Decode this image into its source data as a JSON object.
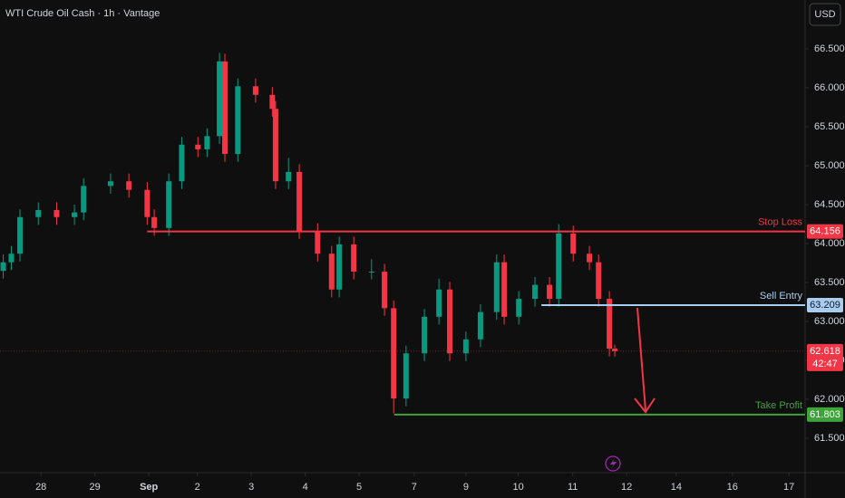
{
  "chart_data": {
    "type": "candlestick",
    "title": "WTI Crude Oil Cash · 1h · Vantage",
    "currency": "USD",
    "up_color": "#089981",
    "down_color": "#f23645",
    "x": [
      -0.7,
      -0.55,
      -0.39,
      -0.05,
      0.29,
      0.62,
      0.79,
      1.29,
      1.63,
      1.97,
      2.1,
      2.37,
      2.61,
      2.91,
      3.08,
      3.31,
      3.41,
      3.65,
      3.98,
      4.29,
      4.35,
      4.59,
      4.79,
      5.13,
      5.39,
      5.53,
      5.8,
      6.13,
      6.37,
      6.54,
      6.77,
      7.11,
      7.38,
      7.58,
      7.88,
      8.15,
      8.45,
      8.59,
      8.86,
      9.16,
      9.43,
      9.6,
      9.87,
      10.17,
      10.34,
      10.54,
      10.64
    ],
    "open": [
      63.65,
      63.76,
      63.87,
      64.34,
      64.43,
      64.34,
      64.4,
      64.74,
      64.8,
      64.69,
      64.34,
      64.2,
      64.8,
      65.27,
      65.21,
      65.38,
      66.34,
      65.15,
      66.02,
      65.91,
      65.73,
      64.8,
      64.92,
      64.16,
      63.87,
      63.41,
      63.99,
      63.64,
      63.64,
      63.17,
      62.01,
      62.59,
      63.06,
      63.41,
      62.59,
      62.77,
      63.12,
      63.76,
      63.06,
      63.29,
      63.47,
      63.29,
      64.13,
      63.87,
      63.76,
      63.29,
      62.65
    ],
    "high": [
      63.86,
      63.97,
      64.44,
      64.53,
      64.53,
      64.5,
      64.84,
      64.9,
      64.9,
      64.79,
      64.44,
      64.9,
      65.37,
      65.37,
      65.48,
      66.45,
      66.44,
      66.12,
      66.12,
      66.01,
      65.83,
      65.1,
      65.02,
      64.26,
      63.97,
      64.09,
      64.09,
      63.8,
      63.74,
      63.27,
      62.69,
      63.16,
      63.55,
      63.51,
      62.87,
      63.22,
      63.86,
      63.86,
      63.39,
      63.57,
      63.57,
      64.25,
      64.23,
      63.97,
      63.86,
      63.39,
      62.7
    ],
    "low": [
      63.55,
      63.66,
      63.77,
      64.24,
      64.24,
      64.24,
      64.3,
      64.64,
      64.59,
      64.24,
      64.1,
      64.1,
      64.7,
      65.11,
      65.11,
      65.28,
      65.05,
      65.05,
      65.81,
      65.63,
      64.7,
      64.7,
      64.06,
      63.77,
      63.31,
      63.31,
      63.54,
      63.54,
      63.07,
      61.82,
      61.91,
      62.49,
      62.96,
      62.49,
      62.49,
      62.67,
      63.02,
      62.96,
      62.96,
      63.19,
      63.19,
      63.19,
      63.77,
      63.66,
      63.19,
      62.55,
      62.55
    ],
    "close": [
      63.76,
      63.87,
      64.34,
      64.43,
      64.34,
      64.4,
      64.74,
      64.8,
      64.69,
      64.34,
      64.2,
      64.8,
      65.27,
      65.21,
      65.38,
      66.34,
      65.15,
      66.02,
      65.91,
      65.73,
      64.8,
      64.92,
      64.16,
      63.87,
      63.41,
      63.99,
      63.64,
      63.64,
      63.17,
      62.01,
      62.59,
      63.06,
      63.41,
      62.59,
      62.77,
      63.12,
      63.76,
      63.06,
      63.29,
      63.47,
      63.29,
      64.13,
      63.87,
      63.76,
      63.29,
      62.65,
      62.618
    ],
    "xlim": [
      -0.76,
      14.17
    ],
    "xticks": [
      {
        "value": 0,
        "label": "28"
      },
      {
        "value": 1,
        "label": "29"
      },
      {
        "value": 2,
        "label": "Sep"
      },
      {
        "value": 2.9,
        "label": "2"
      },
      {
        "value": 3.9,
        "label": "3"
      },
      {
        "value": 4.9,
        "label": "4"
      },
      {
        "value": 5.9,
        "label": "5"
      },
      {
        "value": 6.92,
        "label": "7"
      },
      {
        "value": 7.88,
        "label": "9"
      },
      {
        "value": 8.85,
        "label": "10"
      },
      {
        "value": 9.86,
        "label": "11"
      },
      {
        "value": 10.86,
        "label": "12"
      },
      {
        "value": 11.78,
        "label": "14"
      },
      {
        "value": 12.82,
        "label": "16"
      },
      {
        "value": 13.87,
        "label": "17"
      }
    ],
    "ylim": [
      61.058,
      67.128
    ],
    "yticks": [
      {
        "value": 61.5,
        "label": "61.500"
      },
      {
        "value": 62,
        "label": "62.000"
      },
      {
        "value": 62.5,
        "label": "62.500"
      },
      {
        "value": 63,
        "label": "63.000"
      },
      {
        "value": 63.5,
        "label": "63.500"
      },
      {
        "value": 64,
        "label": "64.000"
      },
      {
        "value": 64.5,
        "label": "64.500"
      },
      {
        "value": 65,
        "label": "65.000"
      },
      {
        "value": 65.5,
        "label": "65.500"
      },
      {
        "value": 66,
        "label": "66.000"
      },
      {
        "value": 66.5,
        "label": "66.500"
      }
    ],
    "grid": false,
    "levels": [
      {
        "name": "Stop Loss",
        "value": 64.156,
        "start": 1.97,
        "color": "#f23645"
      },
      {
        "name": "Sell Entry",
        "value": 63.209,
        "start": 9.28,
        "color": "#a9cdf0"
      },
      {
        "name": "Take Profit",
        "value": 61.803,
        "start": 6.55,
        "color": "#3ea33a"
      }
    ],
    "last_price": 62.618,
    "countdown": "42:47",
    "last_color": "#f23645"
  }
}
